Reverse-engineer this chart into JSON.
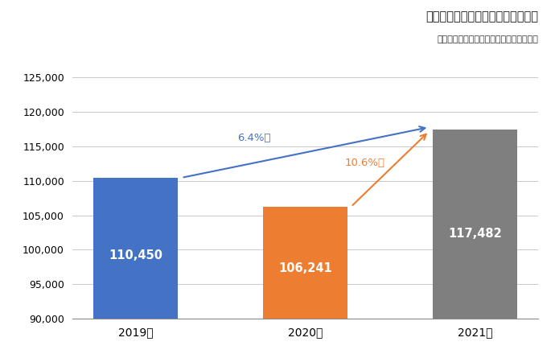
{
  "title": "建設技能工の平均有効求人数の比較",
  "subtitle": "厚生労働省「一般職業紹介状況」より作成",
  "categories": [
    "2019年",
    "2020年",
    "2021年"
  ],
  "values": [
    110450,
    106241,
    117482
  ],
  "bar_colors": [
    "#4472C4",
    "#ED7D31",
    "#7F7F7F"
  ],
  "bar_labels": [
    "110,450",
    "106,241",
    "117,482"
  ],
  "ylim": [
    90000,
    127000
  ],
  "yticks": [
    90000,
    95000,
    100000,
    105000,
    110000,
    115000,
    120000,
    125000
  ],
  "annotation_blue": "6.4%増",
  "annotation_orange": "10.6%増",
  "line_color_blue": "#4472C4",
  "line_color_orange": "#ED7D31",
  "background_color": "#FFFFFF",
  "grid_color": "#C8C8C8",
  "bar_width": 0.5
}
